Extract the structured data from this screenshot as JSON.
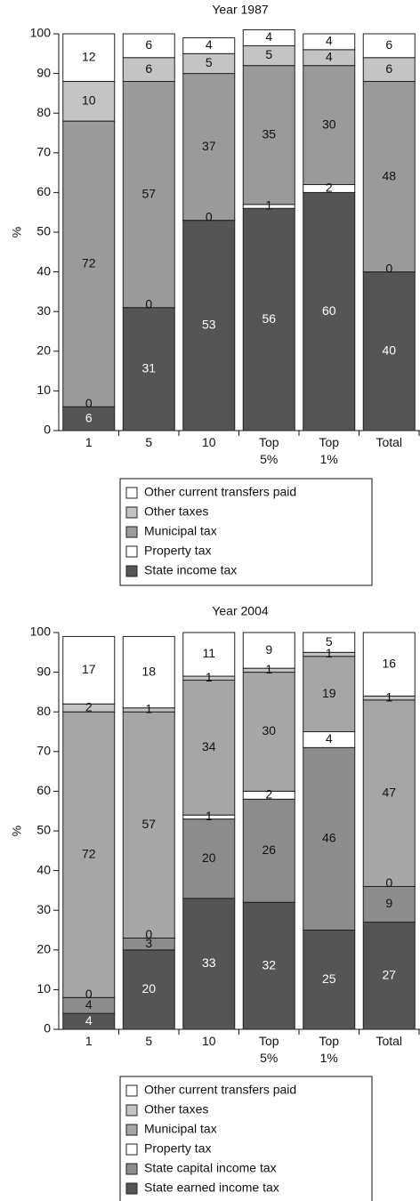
{
  "chart_data": [
    {
      "type": "bar",
      "stacked": true,
      "title": "Year 1987",
      "ylabel": "%",
      "legend": "bottom",
      "categories": [
        "1",
        "5",
        "10",
        "Top 5%",
        "Top 1%",
        "Total"
      ],
      "ylim": [
        0,
        100
      ],
      "yticks": [
        0,
        10,
        20,
        30,
        40,
        50,
        60,
        70,
        80,
        90,
        100
      ],
      "series": [
        {
          "name": "State income tax",
          "color": "#555555",
          "values": [
            6,
            31,
            53,
            56,
            60,
            40
          ]
        },
        {
          "name": "Property tax",
          "color": "#ffffff",
          "values": [
            0,
            0,
            0,
            1,
            2,
            0
          ]
        },
        {
          "name": "Municipal tax",
          "color": "#9a9a9a",
          "values": [
            72,
            57,
            37,
            35,
            30,
            48
          ]
        },
        {
          "name": "Other taxes",
          "color": "#c4c4c4",
          "values": [
            10,
            6,
            5,
            5,
            4,
            6
          ]
        },
        {
          "name": "Other current transfers paid",
          "color": "#ffffff",
          "values": [
            12,
            6,
            4,
            4,
            4,
            6
          ]
        }
      ]
    },
    {
      "type": "bar",
      "stacked": true,
      "title": "Year 2004",
      "ylabel": "%",
      "legend": "bottom",
      "categories": [
        "1",
        "5",
        "10",
        "Top 5%",
        "Top 1%",
        "Total"
      ],
      "ylim": [
        0,
        100
      ],
      "yticks": [
        0,
        10,
        20,
        30,
        40,
        50,
        60,
        70,
        80,
        90,
        100
      ],
      "series": [
        {
          "name": "State earned income tax",
          "color": "#555555",
          "values": [
            4,
            20,
            33,
            32,
            25,
            27
          ]
        },
        {
          "name": "State capital income tax",
          "color": "#8c8c8c",
          "values": [
            4,
            3,
            20,
            26,
            46,
            9
          ]
        },
        {
          "name": "Property tax",
          "color": "#ffffff",
          "values": [
            0,
            0,
            1,
            2,
            4,
            0
          ]
        },
        {
          "name": "Municipal tax",
          "color": "#a6a6a6",
          "values": [
            72,
            57,
            34,
            30,
            19,
            47
          ]
        },
        {
          "name": "Other taxes",
          "color": "#c4c4c4",
          "values": [
            2,
            1,
            1,
            1,
            1,
            1
          ]
        },
        {
          "name": "Other current transfers paid",
          "color": "#ffffff",
          "values": [
            17,
            18,
            11,
            9,
            5,
            16
          ]
        }
      ]
    }
  ]
}
